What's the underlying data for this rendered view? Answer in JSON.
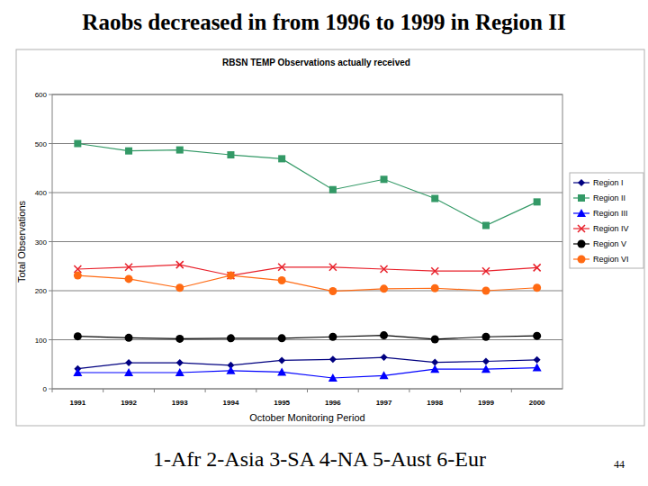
{
  "slide": {
    "title": "Raobs decreased in from 1996 to 1999 in Region II",
    "footnote": "1-Afr 2-Asia 3-SA 4-NA 5-Aust 6-Eur",
    "page": 44
  },
  "chart_data": {
    "type": "line",
    "title": "RBSN TEMP  Observations actually received",
    "x_label": "October Monitoring Period",
    "y_label": "Total Observations",
    "categories": [
      "1991",
      "1992",
      "1993",
      "1994",
      "1995",
      "1996",
      "1997",
      "1998",
      "1999",
      "2000"
    ],
    "series": [
      {
        "name": "Region I",
        "color": "#000080",
        "marker": "diamond",
        "values": [
          41,
          53,
          53,
          48,
          58,
          60,
          64,
          54,
          56,
          59
        ]
      },
      {
        "name": "Region II",
        "color": "#339966",
        "marker": "square",
        "values": [
          500,
          485,
          487,
          477,
          469,
          406,
          427,
          388,
          333,
          381
        ]
      },
      {
        "name": "Region III",
        "color": "#0000ff",
        "marker": "triangle",
        "values": [
          33,
          33,
          33,
          37,
          34,
          22,
          27,
          40,
          40,
          43
        ]
      },
      {
        "name": "Region IV",
        "color": "#e8202a",
        "marker": "x",
        "values": [
          244,
          248,
          253,
          231,
          248,
          248,
          244,
          240,
          240,
          247
        ]
      },
      {
        "name": "Region V",
        "color": "#000000",
        "marker": "circle",
        "values": [
          107,
          104,
          102,
          103,
          103,
          106,
          109,
          101,
          106,
          108
        ]
      },
      {
        "name": "Region VI",
        "color": "#ff6a13",
        "marker": "circle",
        "values": [
          231,
          224,
          206,
          231,
          221,
          199,
          204,
          205,
          200,
          206
        ]
      }
    ],
    "ylim": [
      0,
      600
    ],
    "yticks": [
      0,
      100,
      200,
      300,
      400,
      500,
      600
    ],
    "grid": true,
    "legend": "right"
  }
}
